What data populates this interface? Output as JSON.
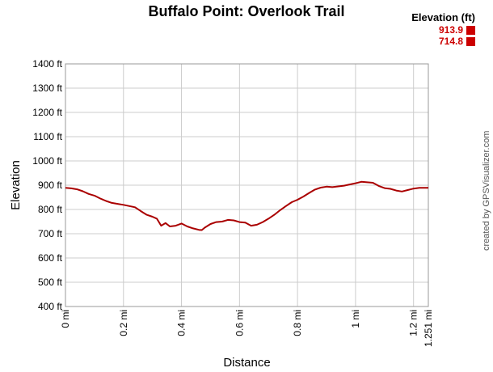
{
  "chart_data": {
    "type": "line",
    "title": "Buffalo Point: Overlook Trail",
    "xlabel": "Distance",
    "ylabel": "Elevation",
    "xlim": [
      0,
      1.251
    ],
    "ylim": [
      400,
      1400
    ],
    "grid": true,
    "x_ticks": [
      {
        "value": 0,
        "label": "0 mi"
      },
      {
        "value": 0.2,
        "label": "0.2 mi"
      },
      {
        "value": 0.4,
        "label": "0.4 mi"
      },
      {
        "value": 0.6,
        "label": "0.6 mi"
      },
      {
        "value": 0.8,
        "label": "0.8 mi"
      },
      {
        "value": 1.0,
        "label": "1 mi"
      },
      {
        "value": 1.2,
        "label": "1.2 mi"
      },
      {
        "value": 1.251,
        "label": "1.251 mi"
      }
    ],
    "y_ticks": [
      {
        "value": 400,
        "label": "400 ft"
      },
      {
        "value": 500,
        "label": "500 ft"
      },
      {
        "value": 600,
        "label": "600 ft"
      },
      {
        "value": 700,
        "label": "700 ft"
      },
      {
        "value": 800,
        "label": "800 ft"
      },
      {
        "value": 900,
        "label": "900 ft"
      },
      {
        "value": 1000,
        "label": "1000 ft"
      },
      {
        "value": 1100,
        "label": "1100 ft"
      },
      {
        "value": 1200,
        "label": "1200 ft"
      },
      {
        "value": 1300,
        "label": "1300 ft"
      },
      {
        "value": 1400,
        "label": "1400 ft"
      }
    ],
    "legend": {
      "title": "Elevation (ft)",
      "entries": [
        "913.9",
        "714.8"
      ],
      "color": "#cc0000",
      "placement": "top-right"
    },
    "series": [
      {
        "color": "#aa0000",
        "x": [
          0,
          0.02,
          0.04,
          0.06,
          0.08,
          0.1,
          0.12,
          0.14,
          0.16,
          0.18,
          0.2,
          0.22,
          0.24,
          0.26,
          0.28,
          0.3,
          0.315,
          0.33,
          0.345,
          0.36,
          0.38,
          0.4,
          0.42,
          0.44,
          0.46,
          0.47,
          0.48,
          0.5,
          0.52,
          0.54,
          0.56,
          0.58,
          0.6,
          0.62,
          0.64,
          0.66,
          0.68,
          0.7,
          0.72,
          0.74,
          0.76,
          0.78,
          0.8,
          0.82,
          0.84,
          0.86,
          0.88,
          0.9,
          0.92,
          0.94,
          0.96,
          0.98,
          1.0,
          1.02,
          1.04,
          1.06,
          1.08,
          1.1,
          1.12,
          1.14,
          1.16,
          1.18,
          1.2,
          1.22,
          1.24,
          1.251
        ],
        "y": [
          889,
          887,
          883,
          875,
          864,
          857,
          845,
          835,
          827,
          823,
          819,
          814,
          809,
          793,
          778,
          770,
          762,
          733,
          744,
          730,
          733,
          742,
          730,
          722,
          716,
          715,
          725,
          740,
          748,
          750,
          757,
          755,
          748,
          746,
          733,
          737,
          748,
          762,
          778,
          797,
          814,
          830,
          840,
          853,
          868,
          882,
          890,
          894,
          892,
          895,
          898,
          903,
          908,
          914,
          912,
          910,
          897,
          888,
          885,
          878,
          874,
          880,
          886,
          889,
          889,
          889
        ]
      }
    ]
  },
  "credit": "created by GPSVisualizer.com"
}
